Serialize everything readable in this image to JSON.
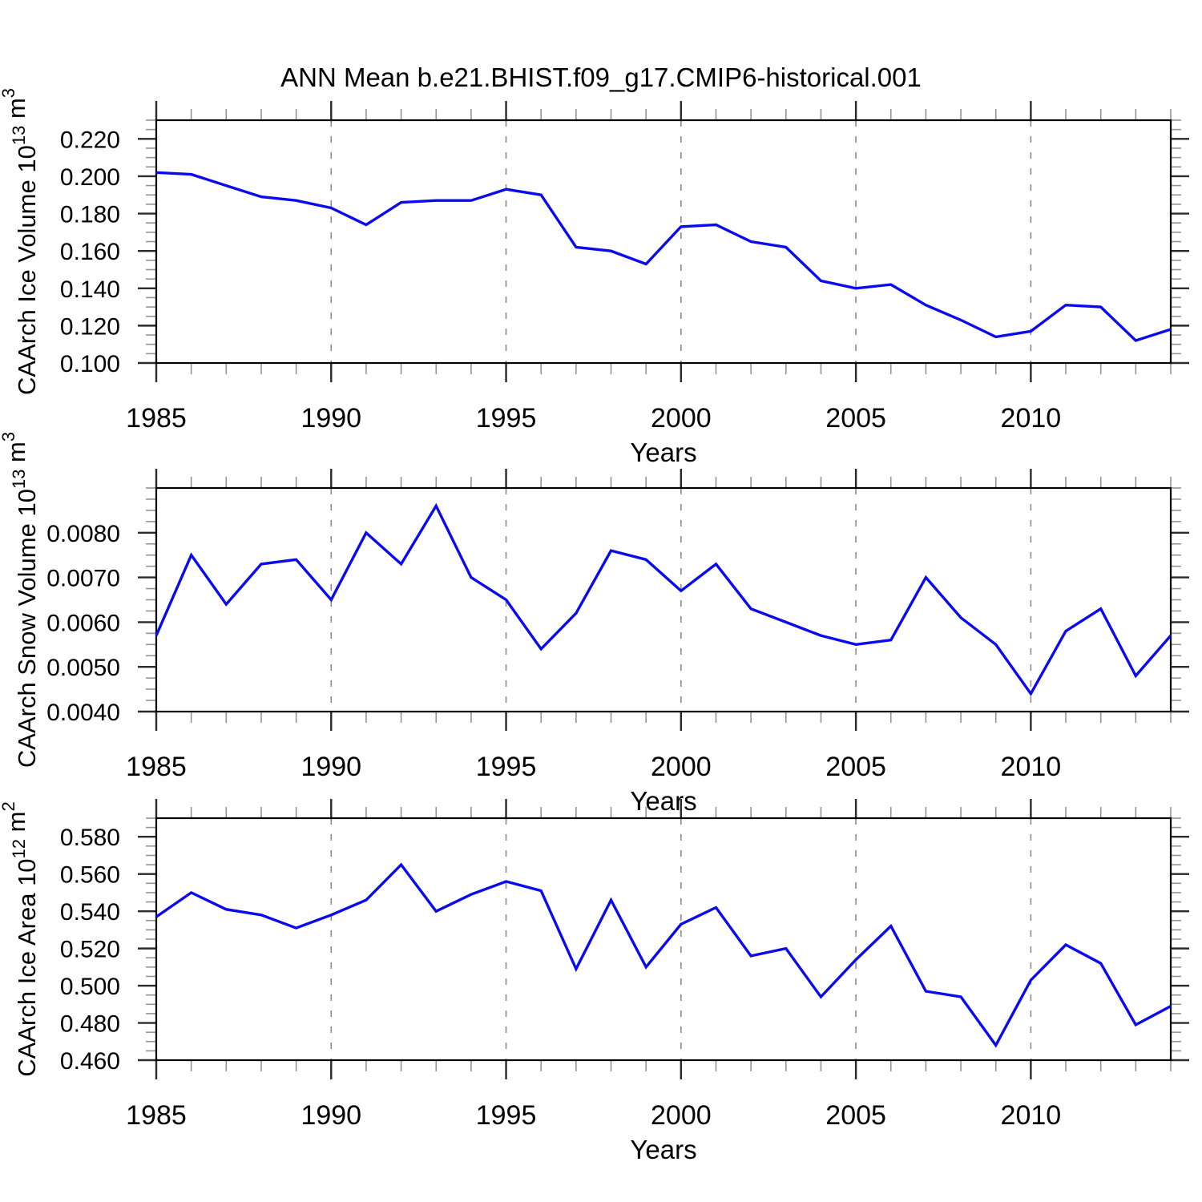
{
  "title": "ANN Mean b.e21.BHIST.f09_g17.CMIP6-historical.001",
  "colors": {
    "line": "#0a0af0",
    "axis": "#000000",
    "major_tick": "#2a2a2a",
    "minor_tick": "#949494",
    "gridline": "#8c8c8c",
    "background": "#ffffff"
  },
  "chart_data": [
    {
      "type": "line",
      "title": "",
      "xlabel": "Years",
      "ylabel": "CAArch Ice Volume 10^13 m^3",
      "ylabel_parts": [
        {
          "t": "CAArch Ice Volume 10",
          "sup": false
        },
        {
          "t": "13",
          "sup": true
        },
        {
          "t": " m",
          "sup": false
        },
        {
          "t": "3",
          "sup": true
        }
      ],
      "x": [
        1985,
        1986,
        1987,
        1988,
        1989,
        1990,
        1991,
        1992,
        1993,
        1994,
        1995,
        1996,
        1997,
        1998,
        1999,
        2000,
        2001,
        2002,
        2003,
        2004,
        2005,
        2006,
        2007,
        2008,
        2009,
        2010,
        2011,
        2012,
        2013,
        2014
      ],
      "values": [
        0.202,
        0.201,
        0.195,
        0.189,
        0.187,
        0.183,
        0.174,
        0.186,
        0.187,
        0.187,
        0.193,
        0.19,
        0.162,
        0.16,
        0.153,
        0.173,
        0.174,
        0.165,
        0.162,
        0.144,
        0.14,
        0.142,
        0.131,
        0.123,
        0.114,
        0.117,
        0.131,
        0.13,
        0.112,
        0.118
      ],
      "xlim": [
        1985,
        2014
      ],
      "ylim": [
        0.1,
        0.23
      ],
      "xticks_major": [
        1985,
        1990,
        1995,
        2000,
        2005,
        2010
      ],
      "xtick_labels": [
        "1985",
        "1990",
        "1995",
        "2000",
        "2005",
        "2010"
      ],
      "xminor_step": 1,
      "yticks_major": [
        0.1,
        0.12,
        0.14,
        0.16,
        0.18,
        0.2,
        0.22
      ],
      "ytick_labels": [
        "0.100",
        "0.120",
        "0.140",
        "0.160",
        "0.180",
        "0.200",
        "0.220"
      ],
      "yminor_step": 0.005,
      "grid": "dashed vertical lines at major x ticks",
      "legend": "none"
    },
    {
      "type": "line",
      "title": "",
      "xlabel": "Years",
      "ylabel": "CAArch Snow Volume 10^13 m^3",
      "ylabel_parts": [
        {
          "t": "CAArch Snow Volume 10",
          "sup": false
        },
        {
          "t": "13",
          "sup": true
        },
        {
          "t": " m",
          "sup": false
        },
        {
          "t": "3",
          "sup": true
        }
      ],
      "x": [
        1985,
        1986,
        1987,
        1988,
        1989,
        1990,
        1991,
        1992,
        1993,
        1994,
        1995,
        1996,
        1997,
        1998,
        1999,
        2000,
        2001,
        2002,
        2003,
        2004,
        2005,
        2006,
        2007,
        2008,
        2009,
        2010,
        2011,
        2012,
        2013,
        2014
      ],
      "values": [
        0.0057,
        0.0075,
        0.0064,
        0.0073,
        0.0074,
        0.0065,
        0.008,
        0.0073,
        0.0086,
        0.007,
        0.0065,
        0.0054,
        0.0062,
        0.0076,
        0.0074,
        0.0067,
        0.0073,
        0.0063,
        0.006,
        0.0057,
        0.0055,
        0.0056,
        0.007,
        0.0061,
        0.0055,
        0.0044,
        0.0058,
        0.0063,
        0.0048,
        0.0057
      ],
      "xlim": [
        1985,
        2014
      ],
      "ylim": [
        0.004,
        0.009
      ],
      "xticks_major": [
        1985,
        1990,
        1995,
        2000,
        2005,
        2010
      ],
      "xtick_labels": [
        "1985",
        "1990",
        "1995",
        "2000",
        "2005",
        "2010"
      ],
      "xminor_step": 1,
      "yticks_major": [
        0.004,
        0.005,
        0.006,
        0.007,
        0.008
      ],
      "ytick_labels": [
        "0.0040",
        "0.0050",
        "0.0060",
        "0.0070",
        "0.0080"
      ],
      "yminor_step": 0.00025,
      "grid": "dashed vertical lines at major x ticks",
      "legend": "none"
    },
    {
      "type": "line",
      "title": "",
      "xlabel": "Years",
      "ylabel": "CAArch Ice Area 10^12 m^2",
      "ylabel_parts": [
        {
          "t": "CAArch Ice Area 10",
          "sup": false
        },
        {
          "t": "12",
          "sup": true
        },
        {
          "t": " m",
          "sup": false
        },
        {
          "t": "2",
          "sup": true
        }
      ],
      "x": [
        1985,
        1986,
        1987,
        1988,
        1989,
        1990,
        1991,
        1992,
        1993,
        1994,
        1995,
        1996,
        1997,
        1998,
        1999,
        2000,
        2001,
        2002,
        2003,
        2004,
        2005,
        2006,
        2007,
        2008,
        2009,
        2010,
        2011,
        2012,
        2013,
        2014
      ],
      "values": [
        0.537,
        0.55,
        0.541,
        0.538,
        0.531,
        0.538,
        0.546,
        0.565,
        0.54,
        0.549,
        0.556,
        0.551,
        0.509,
        0.546,
        0.51,
        0.533,
        0.542,
        0.516,
        0.52,
        0.494,
        0.514,
        0.532,
        0.497,
        0.494,
        0.468,
        0.503,
        0.522,
        0.512,
        0.479,
        0.489
      ],
      "xlim": [
        1985,
        2014
      ],
      "ylim": [
        0.46,
        0.59
      ],
      "xticks_major": [
        1985,
        1990,
        1995,
        2000,
        2005,
        2010
      ],
      "xtick_labels": [
        "1985",
        "1990",
        "1995",
        "2000",
        "2005",
        "2010"
      ],
      "xminor_step": 1,
      "yticks_major": [
        0.46,
        0.48,
        0.5,
        0.52,
        0.54,
        0.56,
        0.58
      ],
      "ytick_labels": [
        "0.460",
        "0.480",
        "0.500",
        "0.520",
        "0.540",
        "0.560",
        "0.580"
      ],
      "yminor_step": 0.005,
      "grid": "dashed vertical lines at major x ticks",
      "legend": "none"
    }
  ]
}
